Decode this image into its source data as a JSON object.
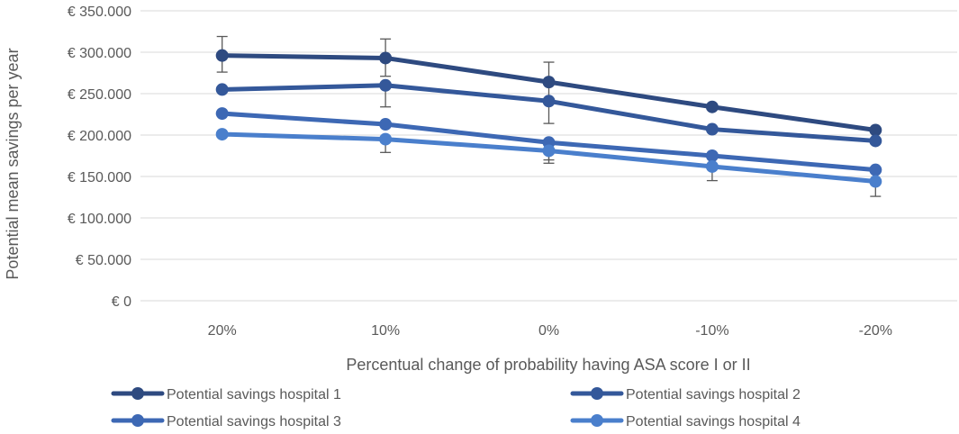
{
  "chart_data": {
    "type": "line",
    "xlabel": "Percentual change of probability having ASA score I or II",
    "ylabel": "Potential mean savings per year",
    "categories": [
      "20%",
      "10%",
      "0%",
      "-10%",
      "-20%"
    ],
    "y_ticks": [
      "€ 0",
      "€ 50.000",
      "€ 100.000",
      "€ 150.000",
      "€ 200.000",
      "€ 250.000",
      "€ 300.000",
      "€ 350.000"
    ],
    "ylim": [
      0,
      350000
    ],
    "grid": "horizontal",
    "legend_position": "bottom",
    "series": [
      {
        "name": "Potential savings hospital 1",
        "color": "#2e4a80",
        "values": [
          296000,
          293000,
          264000,
          234000,
          206000
        ],
        "error_low": [
          276000,
          271000,
          241000,
          234000,
          206000
        ],
        "error_high": [
          319000,
          316000,
          288000,
          234000,
          206000
        ]
      },
      {
        "name": "Potential savings hospital 2",
        "color": "#34589a",
        "values": [
          255000,
          260000,
          241000,
          207000,
          193000
        ],
        "error_low": [
          255000,
          234000,
          214000,
          207000,
          193000
        ],
        "error_high": [
          255000,
          260000,
          241000,
          207000,
          193000
        ]
      },
      {
        "name": "Potential savings hospital 3",
        "color": "#3d68b4",
        "values": [
          226000,
          213000,
          191000,
          175000,
          158000
        ],
        "error_low": [
          226000,
          213000,
          166000,
          175000,
          158000
        ],
        "error_high": [
          226000,
          213000,
          191000,
          175000,
          158000
        ]
      },
      {
        "name": "Potential savings hospital 4",
        "color": "#4a7fcc",
        "values": [
          201000,
          195000,
          181000,
          162000,
          144000
        ],
        "error_low": [
          201000,
          179000,
          170000,
          145000,
          126000
        ],
        "error_high": [
          201000,
          195000,
          181000,
          162000,
          144000
        ]
      }
    ]
  }
}
